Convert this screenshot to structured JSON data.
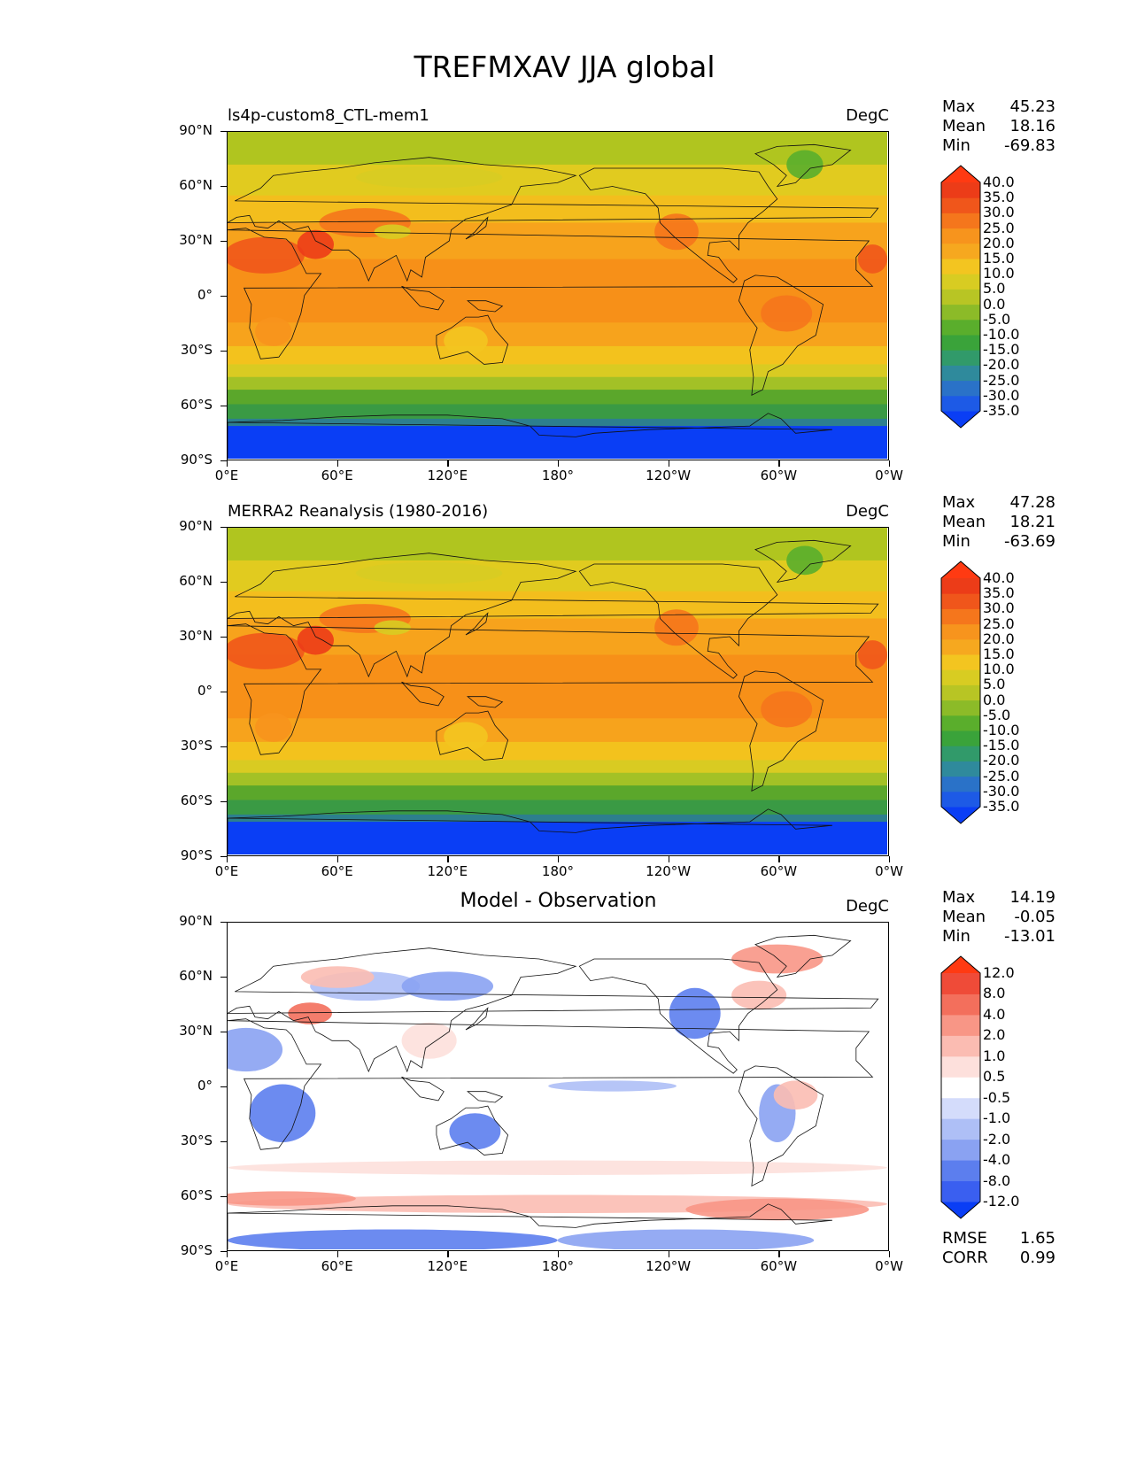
{
  "title": "TREFMXAV JJA global",
  "panels": [
    {
      "left_title": "ls4p-custom8_CTL-mem1",
      "center_title": "",
      "unit": "DegC",
      "stats": {
        "max": "45.23",
        "mean": "18.16",
        "min": "-69.83"
      },
      "extra": null,
      "colorbar": {
        "labels": [
          "40.0",
          "35.0",
          "30.0",
          "25.0",
          "20.0",
          "15.0",
          "10.0",
          "5.0",
          "0.0",
          "-5.0",
          "-10.0",
          "-15.0",
          "-20.0",
          "-25.0",
          "-30.0",
          "-35.0"
        ],
        "colors": [
          "#0a3ef5",
          "#1d5ae6",
          "#2a72c8",
          "#2f8a9c",
          "#319a6a",
          "#3aa33a",
          "#5aae2c",
          "#8cbb28",
          "#b8c524",
          "#d8cc22",
          "#f3c520",
          "#f6a81f",
          "#f7941d",
          "#f5761c",
          "#f0561b",
          "#ec3c18",
          "#ff3a12"
        ]
      }
    },
    {
      "left_title": "MERRA2 Reanalysis (1980-2016)",
      "center_title": "",
      "unit": "DegC",
      "stats": {
        "max": "47.28",
        "mean": "18.21",
        "min": "-63.69"
      },
      "extra": null,
      "colorbar": {
        "labels": [
          "40.0",
          "35.0",
          "30.0",
          "25.0",
          "20.0",
          "15.0",
          "10.0",
          "5.0",
          "0.0",
          "-5.0",
          "-10.0",
          "-15.0",
          "-20.0",
          "-25.0",
          "-30.0",
          "-35.0"
        ],
        "colors": [
          "#0a3ef5",
          "#1d5ae6",
          "#2a72c8",
          "#2f8a9c",
          "#319a6a",
          "#3aa33a",
          "#5aae2c",
          "#8cbb28",
          "#b8c524",
          "#d8cc22",
          "#f3c520",
          "#f6a81f",
          "#f7941d",
          "#f5761c",
          "#f0561b",
          "#ec3c18",
          "#ff3a12"
        ]
      }
    },
    {
      "left_title": "",
      "center_title": "Model - Observation",
      "unit": "DegC",
      "stats": {
        "max": "14.19",
        "mean": "-0.05",
        "min": "-13.01"
      },
      "extra": {
        "rmse": "1.65",
        "corr": "0.99"
      },
      "colorbar": {
        "labels": [
          "12.0",
          "8.0",
          "4.0",
          "2.0",
          "1.0",
          "0.5",
          "-0.5",
          "-1.0",
          "-2.0",
          "-4.0",
          "-8.0",
          "-12.0"
        ],
        "colors": [
          "#0a3ef5",
          "#3a5ff0",
          "#5c7eee",
          "#8aa2f2",
          "#aebff6",
          "#d4dcfb",
          "#ffffff",
          "#fde0dc",
          "#fbbcb2",
          "#f89686",
          "#f36f5c",
          "#ef4b38",
          "#ff3a12"
        ]
      }
    }
  ],
  "axes": {
    "x_ticks": [
      "0°E",
      "60°E",
      "120°E",
      "180°",
      "120°W",
      "60°W",
      "0°W"
    ],
    "y_ticks": [
      "90°N",
      "60°N",
      "30°N",
      "0°",
      "30°S",
      "60°S",
      "90°S"
    ]
  },
  "map_fields": {
    "projection": "PlateCarree, central longitude 180",
    "tmax_bands": [
      {
        "lat_from": 90,
        "lat_to": 72,
        "color": "#b0c51f"
      },
      {
        "lat_from": 72,
        "lat_to": 55,
        "color": "#e1cb1f"
      },
      {
        "lat_from": 55,
        "lat_to": 40,
        "color": "#f3be1d"
      },
      {
        "lat_from": 40,
        "lat_to": 20,
        "color": "#f7a31c"
      },
      {
        "lat_from": 20,
        "lat_to": -15,
        "color": "#f79018"
      },
      {
        "lat_from": -15,
        "lat_to": -28,
        "color": "#f7a31c"
      },
      {
        "lat_from": -28,
        "lat_to": -38,
        "color": "#f3c21d"
      },
      {
        "lat_from": -38,
        "lat_to": -45,
        "color": "#d9cb22"
      },
      {
        "lat_from": -45,
        "lat_to": -52,
        "color": "#a3c126"
      },
      {
        "lat_from": -52,
        "lat_to": -60,
        "color": "#5ba72b"
      },
      {
        "lat_from": -60,
        "lat_to": -68,
        "color": "#3a9a44"
      },
      {
        "lat_from": -68,
        "lat_to": -72,
        "color": "#2d7f8e"
      },
      {
        "lat_from": -72,
        "lat_to": -90,
        "color": "#0a3ef5"
      }
    ]
  }
}
